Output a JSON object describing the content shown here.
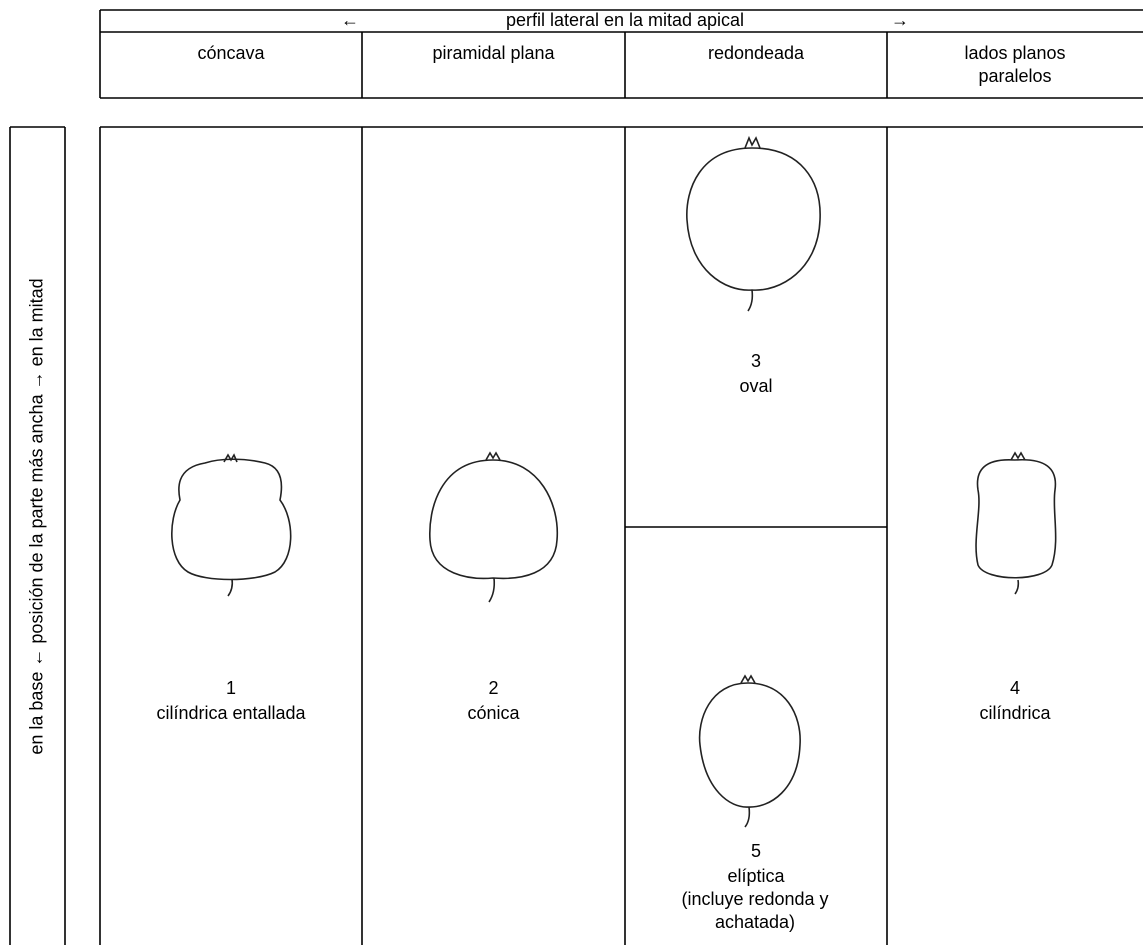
{
  "header": {
    "arrow_left": "←",
    "title": "perfil lateral en la mitad apical",
    "arrow_right": "→",
    "columns": [
      "cóncava",
      "piramidal plana",
      "redondeada",
      "lados planos paralelos"
    ]
  },
  "side_label": "en la base  ←  posición de la parte más ancha  →  en la mitad",
  "shapes": [
    {
      "number": "1",
      "label": "cilíndrica entallada"
    },
    {
      "number": "2",
      "label": "cónica"
    },
    {
      "number": "3",
      "label": "oval"
    },
    {
      "number": "4",
      "label": "cilíndrica"
    },
    {
      "number": "5",
      "label": "elíptica",
      "note": "(incluye redonda y achatada)"
    }
  ]
}
